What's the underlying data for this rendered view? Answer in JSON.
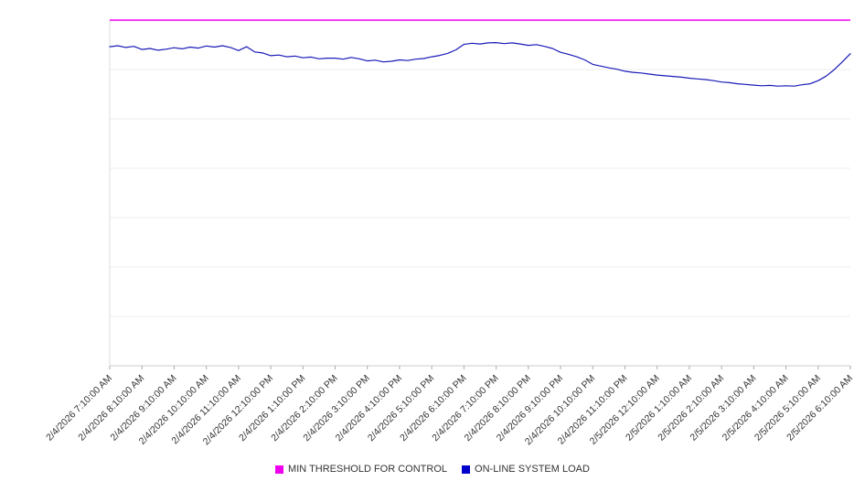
{
  "chart_data": {
    "type": "line",
    "title": "",
    "xlabel": "",
    "ylabel": "",
    "ylim": [
      0,
      100
    ],
    "grid": "horizontal",
    "legend_position": "bottom",
    "x_tick_labels": [
      "2/4/2026 7:10:00 AM",
      "2/4/2026 8:10:00 AM",
      "2/4/2026 9:10:00 AM",
      "2/4/2026 10:10:00 AM",
      "2/4/2026 11:10:00 AM",
      "2/4/2026 12:10:00 PM",
      "2/4/2026 1:10:00 PM",
      "2/4/2026 2:10:00 PM",
      "2/4/2026 3:10:00 PM",
      "2/4/2026 4:10:00 PM",
      "2/4/2026 5:10:00 PM",
      "2/4/2026 6:10:00 PM",
      "2/4/2026 7:10:00 PM",
      "2/4/2026 8:10:00 PM",
      "2/4/2026 9:10:00 PM",
      "2/4/2026 10:10:00 PM",
      "2/4/2026 11:10:00 PM",
      "2/5/2026 12:10:00 AM",
      "2/5/2026 1:10:00 AM",
      "2/5/2026 2:10:00 AM",
      "2/5/2026 3:10:00 AM",
      "2/5/2026 4:10:00 AM",
      "2/5/2026 5:10:00 AM",
      "2/5/2026 6:10:00 AM"
    ],
    "series": [
      {
        "name": "MIN THRESHOLD FOR CONTROL",
        "type": "threshold",
        "color": "#ee00ee",
        "value": 100
      },
      {
        "name": "ON-LINE SYSTEM LOAD",
        "type": "line",
        "color": "#1a1ab8",
        "values": [
          92.3,
          92.6,
          92.1,
          92.4,
          91.5,
          91.8,
          91.3,
          91.6,
          92.0,
          91.7,
          92.2,
          91.9,
          92.5,
          92.2,
          92.6,
          92.1,
          91.2,
          92.3,
          90.8,
          90.5,
          89.7,
          89.9,
          89.4,
          89.6,
          89.1,
          89.3,
          88.8,
          89.0,
          89.0,
          88.7,
          89.2,
          88.8,
          88.2,
          88.4,
          87.9,
          88.1,
          88.5,
          88.3,
          88.7,
          88.9,
          89.4,
          89.8,
          90.4,
          91.4,
          93.0,
          93.3,
          93.1,
          93.4,
          93.5,
          93.2,
          93.4,
          93.1,
          92.7,
          92.9,
          92.4,
          91.8,
          90.7,
          90.1,
          89.4,
          88.5,
          87.2,
          86.7,
          86.2,
          85.8,
          85.2,
          84.9,
          84.7,
          84.4,
          84.1,
          83.9,
          83.7,
          83.5,
          83.2,
          83.0,
          82.8,
          82.5,
          82.1,
          81.9,
          81.6,
          81.4,
          81.2,
          81.0,
          81.1,
          80.9,
          81.0,
          80.9,
          81.3,
          81.6,
          82.5,
          83.8,
          85.7,
          87.9,
          90.3
        ]
      }
    ]
  },
  "legend": {
    "items": [
      {
        "label": "MIN THRESHOLD FOR CONTROL",
        "color": "#ee00ee"
      },
      {
        "label": "ON-LINE SYSTEM LOAD",
        "color": "#0000cc"
      }
    ]
  }
}
